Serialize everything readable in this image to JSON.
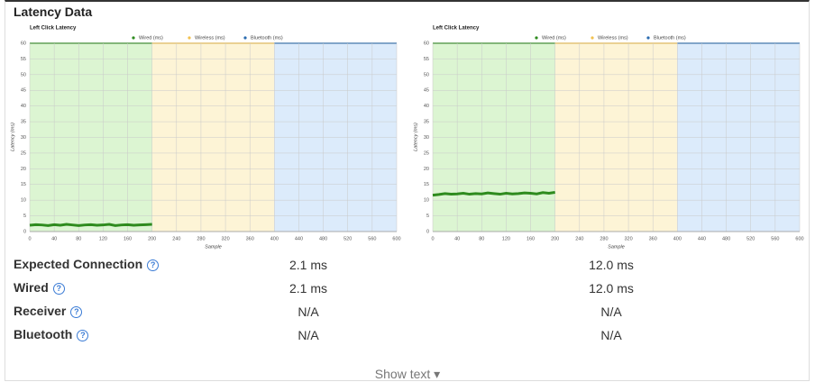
{
  "header": {
    "title": "Latency Data"
  },
  "chart_data": [
    {
      "type": "line",
      "title": "Left Click Latency",
      "x_label": "Sample",
      "y_label": "Latency (ms)",
      "xlim": [
        0,
        600
      ],
      "xticks": [
        0,
        40,
        80,
        120,
        160,
        200,
        240,
        280,
        320,
        360,
        400,
        440,
        480,
        520,
        560,
        600
      ],
      "ylim": [
        0,
        60
      ],
      "yticks": [
        0,
        5,
        10,
        15,
        20,
        25,
        30,
        35,
        40,
        45,
        50,
        55,
        60
      ],
      "grid": true,
      "series": [
        {
          "name": "Wired (ms)",
          "color": "#2e8b1e",
          "band": [
            0,
            200
          ],
          "band_color": "#dcf5d2",
          "x": [
            0,
            10,
            20,
            30,
            40,
            50,
            60,
            70,
            80,
            90,
            100,
            110,
            120,
            130,
            140,
            150,
            160,
            170,
            180,
            190,
            200
          ],
          "values": [
            2.0,
            2.2,
            2.1,
            1.9,
            2.2,
            2.0,
            2.3,
            2.1,
            1.9,
            2.1,
            2.2,
            2.0,
            2.1,
            2.3,
            1.9,
            2.1,
            2.2,
            2.0,
            2.1,
            2.2,
            2.3
          ]
        },
        {
          "name": "Wireless (ms)",
          "color": "#f2c14e",
          "band": [
            200,
            400
          ],
          "band_color": "#fdf4d6",
          "x": [],
          "values": []
        },
        {
          "name": "Bluetooth (ms)",
          "color": "#2b6cb0",
          "band": [
            400,
            600
          ],
          "band_color": "#dcebfb",
          "x": [],
          "values": []
        }
      ]
    },
    {
      "type": "line",
      "title": "Left Click Latency",
      "x_label": "Sample",
      "y_label": "Latency (ms)",
      "xlim": [
        0,
        600
      ],
      "xticks": [
        0,
        40,
        80,
        120,
        160,
        200,
        240,
        280,
        320,
        360,
        400,
        440,
        480,
        520,
        560,
        600
      ],
      "ylim": [
        0,
        60
      ],
      "yticks": [
        0,
        5,
        10,
        15,
        20,
        25,
        30,
        35,
        40,
        45,
        50,
        55,
        60
      ],
      "grid": true,
      "series": [
        {
          "name": "Wired (ms)",
          "color": "#2e8b1e",
          "band": [
            0,
            200
          ],
          "band_color": "#dcf5d2",
          "x": [
            0,
            10,
            20,
            30,
            40,
            50,
            60,
            70,
            80,
            90,
            100,
            110,
            120,
            130,
            140,
            150,
            160,
            170,
            180,
            190,
            200
          ],
          "values": [
            11.6,
            11.8,
            12.1,
            11.9,
            12.0,
            12.2,
            11.9,
            12.1,
            12.0,
            12.3,
            12.1,
            11.9,
            12.2,
            12.0,
            12.1,
            12.3,
            12.2,
            12.0,
            12.4,
            12.2,
            12.5
          ]
        },
        {
          "name": "Wireless (ms)",
          "color": "#f2c14e",
          "band": [
            200,
            400
          ],
          "band_color": "#fdf4d6",
          "x": [],
          "values": []
        },
        {
          "name": "Bluetooth (ms)",
          "color": "#2b6cb0",
          "band": [
            400,
            600
          ],
          "band_color": "#dcebfb",
          "x": [],
          "values": []
        }
      ]
    }
  ],
  "table": {
    "rows": [
      [
        "Expected Connection",
        "2.1 ms",
        "12.0 ms"
      ],
      [
        "Wired",
        "2.1 ms",
        "12.0 ms"
      ],
      [
        "Receiver",
        "N/A",
        "N/A"
      ],
      [
        "Bluetooth",
        "N/A",
        "N/A"
      ]
    ]
  },
  "footer": {
    "toggle": "Show text ▾"
  }
}
